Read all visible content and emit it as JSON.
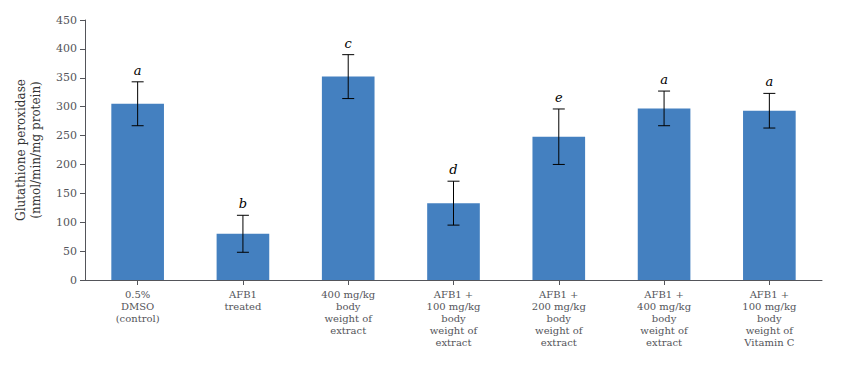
{
  "chart_data": {
    "type": "bar",
    "categories": [
      "0.5%\nDMSO\n(control)",
      "AFB1\ntreated",
      "400 mg/kg\nbody\nweight of\nextract",
      "AFB1 +\n100 mg/kg\nbody\nweight of\nextract",
      "AFB1 +\n200 mg/kg\nbody\nweight of\nextract",
      "AFB1 +\n400 mg/kg\nbody\nweight of\nextract",
      "AFB1 +\n100 mg/kg\nbody\nweight of\nVitamin C"
    ],
    "values": [
      305,
      80,
      352,
      133,
      248,
      297,
      293
    ],
    "errors": [
      38,
      32,
      38,
      38,
      48,
      30,
      30
    ],
    "letters": [
      "a",
      "b",
      "c",
      "d",
      "e",
      "a",
      "a"
    ],
    "color": "#4480c0",
    "ylabel": "Glutathione peroxidase\n(nmol/min/mg protein)",
    "ylim": [
      0,
      450
    ],
    "yticks": [
      0,
      50,
      100,
      150,
      200,
      250,
      300,
      350,
      400,
      450
    ],
    "grid": false
  }
}
